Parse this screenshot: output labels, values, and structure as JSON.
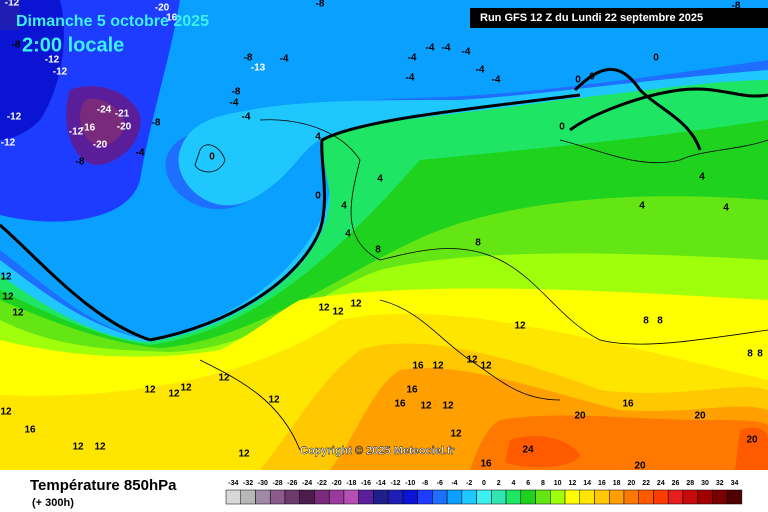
{
  "header": {
    "title": "Dimanche 5 octobre 2025",
    "subtitle": "2:00 locale",
    "run": "Run GFS 12 Z du Lundi 22 septembre 2025",
    "copyright": "Copyright © 2025 Meteociel.fr"
  },
  "footer": {
    "parameter": "Température 850hPa",
    "lead": "(+ 300h)"
  },
  "legend": {
    "ticks": [
      -34,
      -32,
      -30,
      -28,
      -26,
      -24,
      -22,
      -20,
      -18,
      -16,
      -14,
      -12,
      -10,
      -8,
      -6,
      -4,
      -2,
      0,
      2,
      4,
      6,
      8,
      10,
      12,
      14,
      16,
      18,
      20,
      22,
      24,
      26,
      28,
      30,
      32,
      34
    ],
    "colors": [
      "#d8d8d8",
      "#b8b8b8",
      "#a08aa8",
      "#8c5a8c",
      "#6e3a6e",
      "#4c1c4c",
      "#7a2a7a",
      "#9a3a9a",
      "#b450b4",
      "#5a1e9a",
      "#1e1e8c",
      "#1e1eb4",
      "#0a14d2",
      "#1e3cff",
      "#1e6eff",
      "#0aa0ff",
      "#1ec8ff",
      "#3cf0f0",
      "#32e6b4",
      "#1ee664",
      "#1ed21e",
      "#64e614",
      "#a0ff0a",
      "#ffff00",
      "#ffe600",
      "#ffc800",
      "#ffa000",
      "#ff7800",
      "#ff5a00",
      "#ff3c00",
      "#e61e1e",
      "#c80a0a",
      "#a00000",
      "#7a0000",
      "#500000"
    ]
  },
  "map": {
    "labels": [
      -12,
      -8,
      -12,
      -12,
      -12,
      -12,
      -16,
      -24,
      -21,
      -20,
      -12,
      -8,
      -20,
      -8,
      -4,
      -20,
      -16,
      -8,
      -8,
      -13,
      -4,
      -8,
      -4,
      -4,
      -4,
      -4,
      -4,
      -4,
      -4,
      -4,
      -4,
      -8,
      0,
      0,
      0,
      0,
      0,
      4,
      0,
      4,
      4,
      4,
      8,
      8,
      4,
      4,
      4,
      12,
      12,
      12,
      12,
      8,
      8,
      8,
      8,
      12,
      12,
      16,
      12,
      16,
      16,
      12,
      12,
      12,
      16,
      20,
      20,
      20,
      24,
      20,
      16,
      12,
      12,
      12,
      12,
      12,
      12,
      16,
      12,
      12,
      12,
      12,
      12,
      12
    ]
  }
}
